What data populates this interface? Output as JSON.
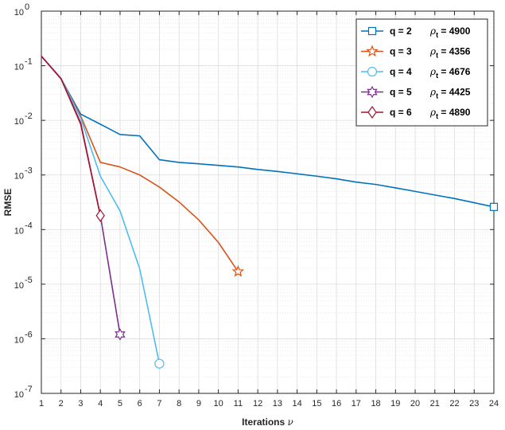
{
  "chart_data": {
    "type": "line",
    "xlabel": "Iterations",
    "xlabel_symbol": "ν",
    "ylabel": "RMSE",
    "yscale": "log",
    "xlim": [
      1,
      24
    ],
    "ylim": [
      1e-07,
      1
    ],
    "grid": true,
    "legend_position": "top-right",
    "x_ticks": [
      "1",
      "2",
      "3",
      "4",
      "5",
      "6",
      "7",
      "8",
      "9",
      "10",
      "11",
      "12",
      "13",
      "14",
      "15",
      "16",
      "17",
      "18",
      "19",
      "20",
      "21",
      "22",
      "23",
      "24"
    ],
    "y_ticks": [
      {
        "base": "10",
        "exp": "0",
        "value": 1
      },
      {
        "base": "10",
        "exp": "-1",
        "value": 0.1
      },
      {
        "base": "10",
        "exp": "-2",
        "value": 0.01
      },
      {
        "base": "10",
        "exp": "-3",
        "value": 0.001
      },
      {
        "base": "10",
        "exp": "-4",
        "value": 0.0001
      },
      {
        "base": "10",
        "exp": "-5",
        "value": 1e-05
      },
      {
        "base": "10",
        "exp": "-6",
        "value": 1e-06
      },
      {
        "base": "10",
        "exp": "-7",
        "value": 1e-07
      }
    ],
    "series": [
      {
        "legend_q": "q = 2",
        "legend_rho": "ρ",
        "legend_rho_sub": "t",
        "legend_val": "= 4900",
        "color": "#0072BD",
        "marker": "square",
        "x": [
          1,
          2,
          3,
          4,
          5,
          6,
          7,
          8,
          9,
          10,
          11,
          12,
          13,
          14,
          15,
          16,
          17,
          18,
          19,
          20,
          21,
          22,
          23,
          24
        ],
        "y": [
          0.15,
          0.058,
          0.013,
          0.0085,
          0.0055,
          0.0052,
          0.0019,
          0.0017,
          0.0016,
          0.0015,
          0.0014,
          0.00126,
          0.00116,
          0.00105,
          0.00095,
          0.00085,
          0.00074,
          0.00067,
          0.00058,
          0.0005,
          0.00043,
          0.00037,
          0.00031,
          0.00026
        ],
        "marker_at": [
          24
        ]
      },
      {
        "legend_q": "q = 3",
        "legend_rho": "ρ",
        "legend_rho_sub": "t",
        "legend_val": "= 4356",
        "color": "#D95319",
        "marker": "star",
        "x": [
          1,
          2,
          3,
          4,
          5,
          6,
          7,
          8,
          9,
          10,
          11
        ],
        "y": [
          0.15,
          0.058,
          0.012,
          0.0017,
          0.0014,
          0.001,
          0.0006,
          0.00032,
          0.00015,
          5.8e-05,
          1.7e-05
        ],
        "marker_at": [
          11
        ]
      },
      {
        "legend_q": "q = 4",
        "legend_rho": "ρ",
        "legend_rho_sub": "t",
        "legend_val": "= 4676",
        "color": "#4DBEEE",
        "marker": "circle",
        "x": [
          1,
          2,
          3,
          4,
          5,
          6,
          7
        ],
        "y": [
          0.15,
          0.058,
          0.011,
          0.00095,
          0.00022,
          1.9e-05,
          3.5e-07
        ],
        "marker_at": [
          7
        ]
      },
      {
        "legend_q": "q = 5",
        "legend_rho": "ρ",
        "legend_rho_sub": "t",
        "legend_val": "= 4425",
        "color": "#7E2F8E",
        "marker": "hexagram",
        "x": [
          1,
          2,
          3,
          4,
          5
        ],
        "y": [
          0.15,
          0.058,
          0.009,
          0.00018,
          1.2e-06
        ],
        "marker_at": [
          5
        ]
      },
      {
        "legend_q": "q = 6",
        "legend_rho": "ρ",
        "legend_rho_sub": "t",
        "legend_val": "= 4890",
        "color": "#A2142F",
        "marker": "diamond",
        "x": [
          1,
          2,
          3,
          4
        ],
        "y": [
          0.15,
          0.058,
          0.0085,
          0.00018
        ],
        "marker_at": [
          4
        ]
      }
    ]
  }
}
